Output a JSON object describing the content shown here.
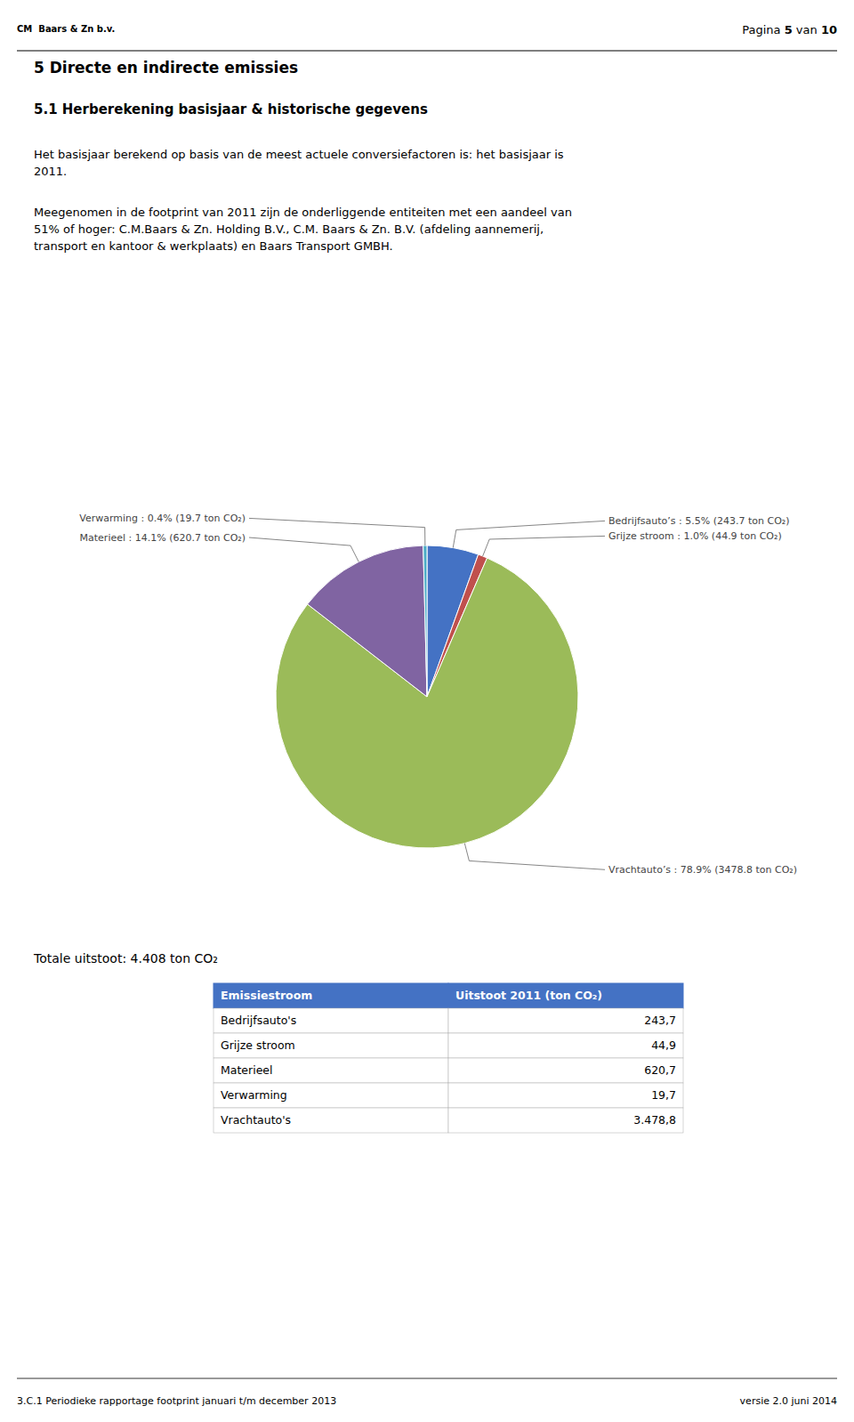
{
  "chart_data": {
    "type": "pie",
    "categories": [
      "Bedrijfsauto’s",
      "Grijze stroom",
      "Vrachtauto’s",
      "Materieel",
      "Verwarming"
    ],
    "values": [
      5.5,
      1.0,
      78.9,
      14.1,
      0.4
    ],
    "value_labels": [
      "Bedrijfsauto’s : 5.5% (243.7 ton CO₂)",
      "Grijze stroom : 1.0% (44.9 ton CO₂)",
      "Vrachtauto’s : 78.9% (3478.8 ton CO₂)",
      "Materieel : 14.1% (620.7 ton CO₂)",
      "Verwarming : 0.4% (19.7 ton CO₂)"
    ],
    "colors": [
      "#4472C4",
      "#C0504D",
      "#9BBB59",
      "#8064A2",
      "#4BACC6"
    ],
    "data_labels": true
  },
  "page": {
    "bg_color": "#ffffff",
    "line_color": "#000000",
    "logo_text": "CM  Baars & Zn b.v.",
    "page_number": [
      "Pagina ",
      "5",
      " van ",
      "10"
    ],
    "section_title": "5 Directe en indirecte emissies",
    "subsection_title": "5.1 Herberekening basisjaar & historische gegevens",
    "paragraph1": [
      "Het basisjaar berekend op basis van de meest actuele conversiefactoren is: het basisjaar is",
      "2011."
    ],
    "paragraph2": [
      "Meegenomen in de footprint van 2011 zijn de onderliggende entiteiten met een aandeel van",
      "51% of hoger: C.M.Baars & Zn. Holding B.V., C.M. Baars & Zn. B.V. (afdeling aannemerij,",
      "transport en kantoor & werkplaats) en Baars Transport GMBH."
    ],
    "total_line": "Totale uitstoot: 4.408 ton CO₂",
    "footer_left": "3.C.1 Periodieke rapportage footprint januari t/m december 2013",
    "footer_right": "versie 2.0 juni 2014"
  },
  "table": {
    "header": [
      "Emissiestroom",
      "Uitstoot 2011 (ton CO₂)"
    ],
    "header_color": "#4472C4",
    "rows": [
      [
        "Bedrijfsauto's",
        "243,7"
      ],
      [
        "Grijze stroom",
        "44,9"
      ],
      [
        "Materieel",
        "620,7"
      ],
      [
        "Verwarming",
        "19,7"
      ],
      [
        "Vrachtauto's",
        "3.478,8"
      ]
    ]
  }
}
